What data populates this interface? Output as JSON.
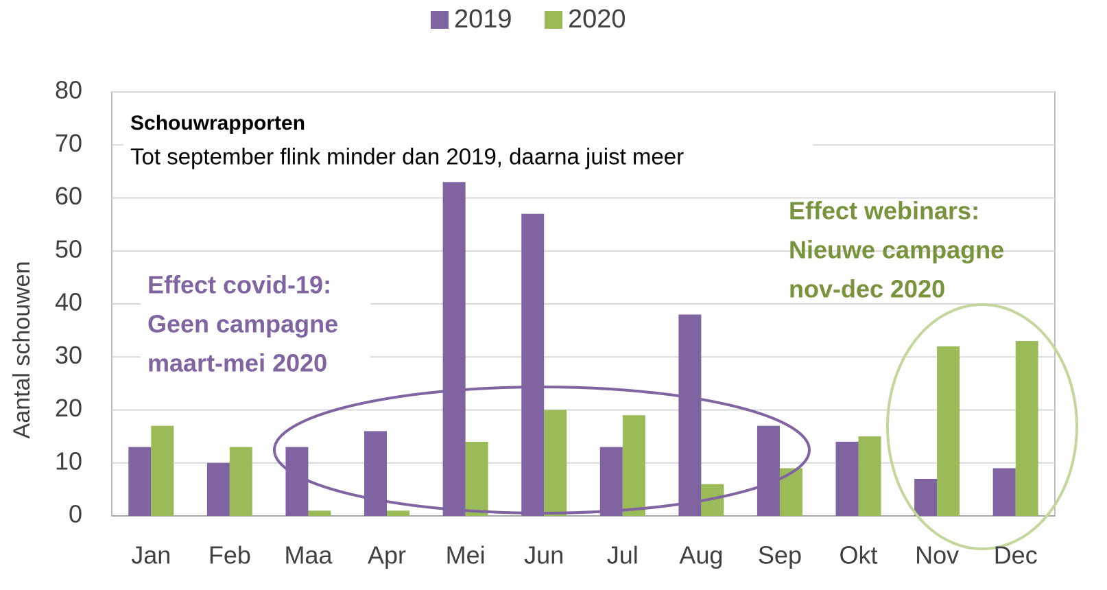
{
  "chart_data": {
    "type": "bar",
    "title": "Schouwrapporten",
    "subtitle": "Tot september flink minder dan 2019, daarna juist meer",
    "y_label": "Aantal schouwen",
    "categories": [
      "Jan",
      "Feb",
      "Maa",
      "Apr",
      "Mei",
      "Jun",
      "Jul",
      "Aug",
      "Sep",
      "Okt",
      "Nov",
      "Dec"
    ],
    "series": [
      {
        "name": "2019",
        "color": "#8064a2",
        "values": [
          13,
          10,
          13,
          16,
          63,
          57,
          13,
          38,
          17,
          14,
          7,
          9
        ]
      },
      {
        "name": "2020",
        "color": "#9bbb59",
        "values": [
          17,
          13,
          1,
          1,
          14,
          20,
          19,
          6,
          9,
          15,
          32,
          33
        ]
      }
    ],
    "ylim": [
      0,
      80
    ],
    "yticks": [
      0,
      10,
      20,
      30,
      40,
      50,
      60,
      70,
      80
    ],
    "grid": true,
    "legend": "top",
    "annotations": [
      {
        "color": "#8064a2",
        "lines": [
          "Effect covid-19:",
          "Geen campagne",
          "maart-mei 2020"
        ]
      },
      {
        "color": "#77933c",
        "lines": [
          "Effect webinars:",
          "Nieuwe campagne",
          "nov-dec 2020"
        ]
      }
    ]
  }
}
